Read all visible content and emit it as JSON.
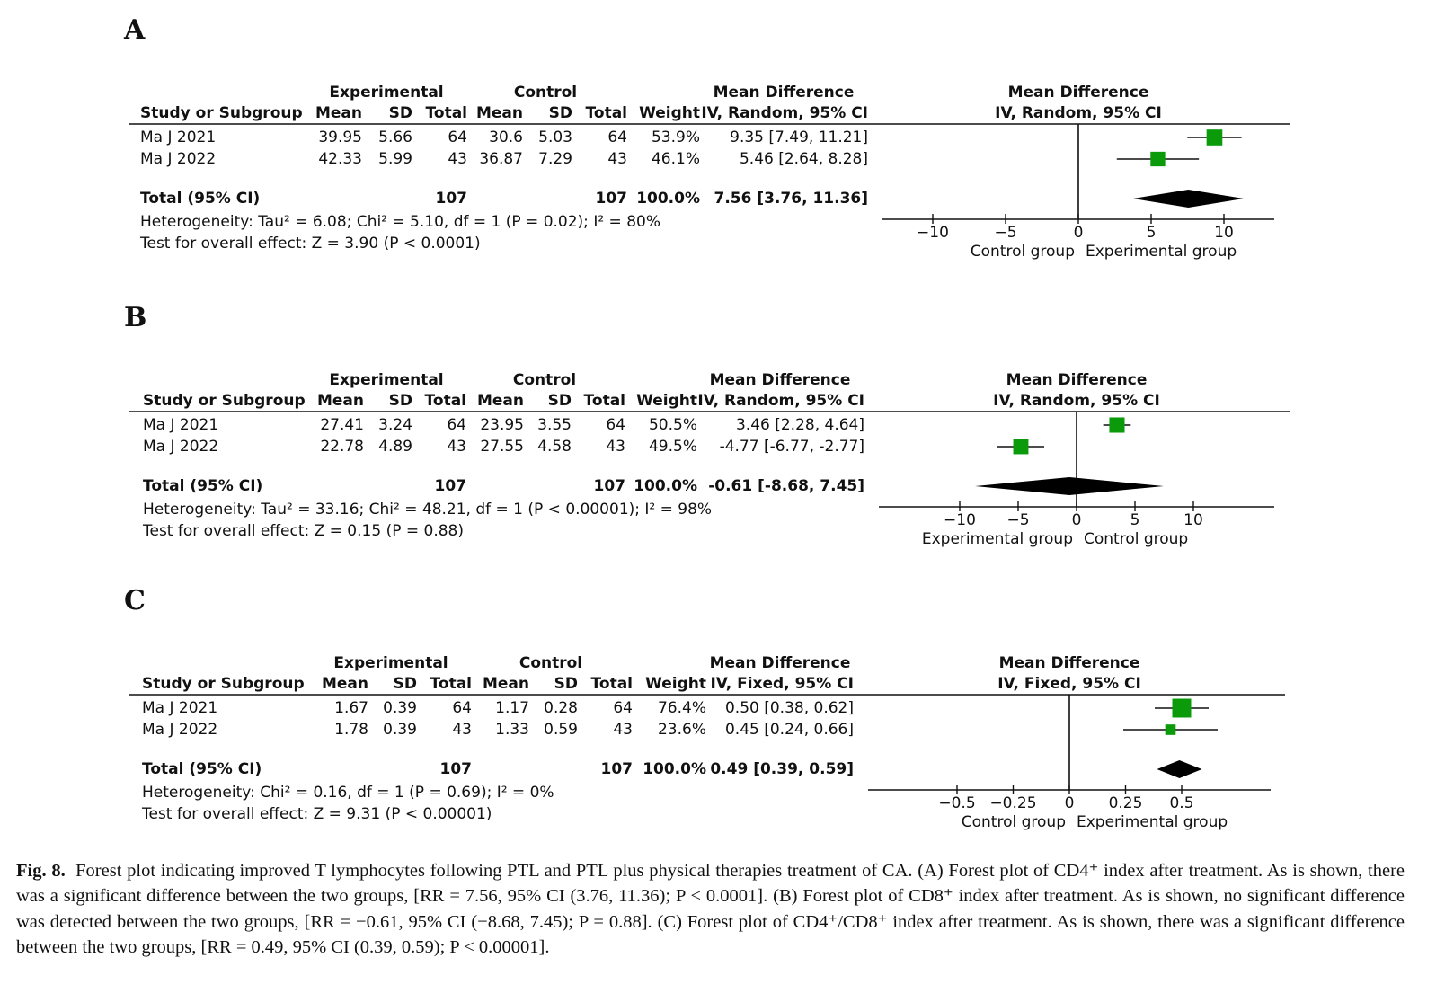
{
  "panels": [
    {
      "label": "A",
      "headers": {
        "group1": "Experimental",
        "group2": "Control",
        "md": "Mean Difference",
        "study": "Study or Subgroup",
        "mean": "Mean",
        "sd": "SD",
        "total": "Total",
        "weight": "Weight",
        "method": "IV, Random, 95% CI",
        "plot_title": "Mean Difference",
        "plot_method": "IV, Random, 95% CI"
      },
      "rows": [
        {
          "study": "Ma J 2021",
          "e_mean": "39.95",
          "e_sd": "5.66",
          "e_total": "64",
          "c_mean": "30.6",
          "c_sd": "5.03",
          "c_total": "64",
          "weight": "53.9%",
          "ci": "9.35 [7.49, 11.21]"
        },
        {
          "study": "Ma J 2022",
          "e_mean": "42.33",
          "e_sd": "5.99",
          "e_total": "43",
          "c_mean": "36.87",
          "c_sd": "7.29",
          "c_total": "43",
          "weight": "46.1%",
          "ci": "5.46 [2.64, 8.28]"
        }
      ],
      "total": {
        "label": "Total (95% CI)",
        "e_total": "107",
        "c_total": "107",
        "weight": "100.0%",
        "ci": "7.56 [3.76, 11.36]"
      },
      "heterogeneity": "Heterogeneity: Tau² = 6.08; Chi² = 5.10, df = 1 (P = 0.02); I² = 80%",
      "overall_effect": "Test for overall effect: Z = 3.90 (P < 0.0001)"
    },
    {
      "label": "B",
      "headers": {
        "group1": "Experimental",
        "group2": "Control",
        "md": "Mean Difference",
        "study": "Study or Subgroup",
        "mean": "Mean",
        "sd": "SD",
        "total": "Total",
        "weight": "Weight",
        "method": "IV, Random, 95% CI",
        "plot_title": "Mean Difference",
        "plot_method": "IV, Random, 95% CI"
      },
      "rows": [
        {
          "study": "Ma J 2021",
          "e_mean": "27.41",
          "e_sd": "3.24",
          "e_total": "64",
          "c_mean": "23.95",
          "c_sd": "3.55",
          "c_total": "64",
          "weight": "50.5%",
          "ci": "3.46 [2.28, 4.64]"
        },
        {
          "study": "Ma J 2022",
          "e_mean": "22.78",
          "e_sd": "4.89",
          "e_total": "43",
          "c_mean": "27.55",
          "c_sd": "4.58",
          "c_total": "43",
          "weight": "49.5%",
          "ci": "-4.77 [-6.77, -2.77]"
        }
      ],
      "total": {
        "label": "Total (95% CI)",
        "e_total": "107",
        "c_total": "107",
        "weight": "100.0%",
        "ci": "-0.61 [-8.68, 7.45]"
      },
      "heterogeneity": "Heterogeneity: Tau² = 33.16; Chi² = 48.21, df = 1 (P < 0.00001); I² = 98%",
      "overall_effect": "Test for overall effect: Z = 0.15 (P = 0.88)"
    },
    {
      "label": "C",
      "headers": {
        "group1": "Experimental",
        "group2": "Control",
        "md": "Mean Difference",
        "study": "Study or Subgroup",
        "mean": "Mean",
        "sd": "SD",
        "total": "Total",
        "weight": "Weight",
        "method": "IV, Fixed, 95% CI",
        "plot_title": "Mean Difference",
        "plot_method": "IV, Fixed, 95% CI"
      },
      "rows": [
        {
          "study": "Ma J 2021",
          "e_mean": "1.67",
          "e_sd": "0.39",
          "e_total": "64",
          "c_mean": "1.17",
          "c_sd": "0.28",
          "c_total": "64",
          "weight": "76.4%",
          "ci": "0.50 [0.38, 0.62]"
        },
        {
          "study": "Ma J 2022",
          "e_mean": "1.78",
          "e_sd": "0.39",
          "e_total": "43",
          "c_mean": "1.33",
          "c_sd": "0.59",
          "c_total": "43",
          "weight": "23.6%",
          "ci": "0.45 [0.24, 0.66]"
        }
      ],
      "total": {
        "label": "Total (95% CI)",
        "e_total": "107",
        "c_total": "107",
        "weight": "100.0%",
        "ci": "0.49 [0.39, 0.59]"
      },
      "heterogeneity": "Heterogeneity: Chi² = 0.16, df = 1 (P = 0.69); I² = 0%",
      "overall_effect": "Test for overall effect: Z = 9.31 (P < 0.00001)"
    }
  ],
  "chart_data": [
    {
      "type": "scatter",
      "title": "A",
      "xlim": [
        -13.5,
        13.5
      ],
      "ticks": [
        -10,
        -5,
        0,
        5,
        10
      ],
      "tick_labels": [
        "−10",
        "−5",
        "0",
        "5",
        "10"
      ],
      "left_label": "Control group",
      "right_label": "Experimental group",
      "points": [
        {
          "study": "Ma J 2021",
          "estimate": 9.35,
          "ci_low": 7.49,
          "ci_high": 11.21,
          "weight": 53.9
        },
        {
          "study": "Ma J 2022",
          "estimate": 5.46,
          "ci_low": 2.64,
          "ci_high": 8.28,
          "weight": 46.1
        }
      ],
      "summary": {
        "estimate": 7.56,
        "ci_low": 3.76,
        "ci_high": 11.36
      },
      "marker_color": "#0a9a0a"
    },
    {
      "type": "scatter",
      "title": "B",
      "xlim": [
        -17,
        17
      ],
      "ticks": [
        -10,
        -5,
        0,
        5,
        10
      ],
      "tick_labels": [
        "−10",
        "−5",
        "0",
        "5",
        "10"
      ],
      "left_label": "Experimental group",
      "right_label": "Control group",
      "points": [
        {
          "study": "Ma J 2021",
          "estimate": 3.46,
          "ci_low": 2.28,
          "ci_high": 4.64,
          "weight": 50.5
        },
        {
          "study": "Ma J 2022",
          "estimate": -4.77,
          "ci_low": -6.77,
          "ci_high": -2.77,
          "weight": 49.5
        }
      ],
      "summary": {
        "estimate": -0.61,
        "ci_low": -8.68,
        "ci_high": 7.45
      },
      "marker_color": "#0a9a0a"
    },
    {
      "type": "scatter",
      "title": "C",
      "xlim": [
        -0.9,
        0.9
      ],
      "ticks": [
        -0.5,
        -0.25,
        0,
        0.25,
        0.5
      ],
      "tick_labels": [
        "−0.5",
        "−0.25",
        "0",
        "0.25",
        "0.5"
      ],
      "left_label": "Control group",
      "right_label": "Experimental group",
      "points": [
        {
          "study": "Ma J 2021",
          "estimate": 0.5,
          "ci_low": 0.38,
          "ci_high": 0.62,
          "weight": 76.4
        },
        {
          "study": "Ma J 2022",
          "estimate": 0.45,
          "ci_low": 0.24,
          "ci_high": 0.66,
          "weight": 23.6
        }
      ],
      "summary": {
        "estimate": 0.49,
        "ci_low": 0.39,
        "ci_high": 0.59
      },
      "marker_color": "#0a9a0a"
    }
  ],
  "caption": {
    "fig_label": "Fig. 8.",
    "text": "Forest plot indicating improved T lymphocytes following PTL and PTL plus physical therapies treatment of CA. (A) Forest plot of CD4⁺ index after treatment. As is shown, there was a significant difference between the two groups, [RR = 7.56, 95% CI (3.76, 11.36); P < 0.0001]. (B) Forest plot of CD8⁺ index after treatment. As is shown, no significant difference was detected between the two groups, [RR = −0.61, 95% CI (−8.68, 7.45); P = 0.88]. (C) Forest plot of CD4⁺/CD8⁺ index after treatment. As is shown, there was a significant difference between the two groups, [RR = 0.49, 95% CI (0.39, 0.59); P < 0.00001]."
  }
}
